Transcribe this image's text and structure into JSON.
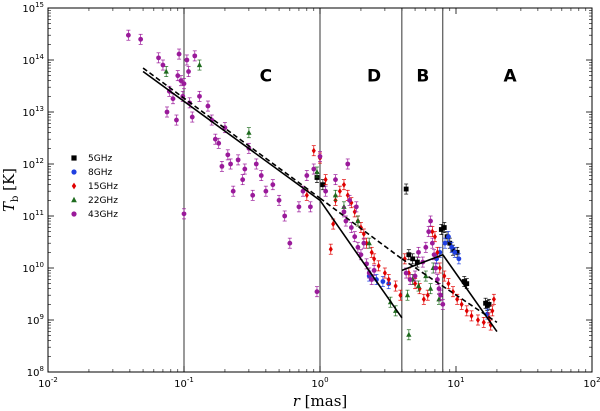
{
  "chart_data": {
    "type": "scatter",
    "title": "",
    "xlabel": "r [mas]",
    "ylabel": "T_b [K]",
    "xscale": "log",
    "yscale": "log",
    "xlim": [
      0.01,
      100
    ],
    "ylim": [
      100000000.0,
      1000000000000000.0
    ],
    "x_ticks": [
      {
        "value": 0.01,
        "base": "10",
        "exp": "-2"
      },
      {
        "value": 0.1,
        "base": "10",
        "exp": "-1"
      },
      {
        "value": 1,
        "base": "10",
        "exp": "0"
      },
      {
        "value": 10,
        "base": "10",
        "exp": "1"
      },
      {
        "value": 100,
        "base": "10",
        "exp": "2"
      }
    ],
    "y_ticks": [
      {
        "value": 100000000.0,
        "base": "10",
        "exp": "8"
      },
      {
        "value": 1000000000.0,
        "base": "10",
        "exp": "9"
      },
      {
        "value": 10000000000.0,
        "base": "10",
        "exp": "10"
      },
      {
        "value": 100000000000.0,
        "base": "10",
        "exp": "11"
      },
      {
        "value": 1000000000000.0,
        "base": "10",
        "exp": "12"
      },
      {
        "value": 10000000000000.0,
        "base": "10",
        "exp": "13"
      },
      {
        "value": 100000000000000.0,
        "base": "10",
        "exp": "14"
      },
      {
        "value": 1000000000000000.0,
        "base": "10",
        "exp": "15"
      }
    ],
    "grid": false,
    "legend_position": "center-left",
    "region_boundaries": [
      0.1,
      1.0,
      4.0,
      8.0
    ],
    "region_labels": [
      {
        "text": "C",
        "x": 0.4,
        "y": 50000000000000.0
      },
      {
        "text": "D",
        "x": 2.5,
        "y": 50000000000000.0
      },
      {
        "text": "B",
        "x": 5.7,
        "y": 50000000000000.0
      },
      {
        "text": "A",
        "x": 25,
        "y": 50000000000000.0
      }
    ],
    "fit_lines": [
      {
        "style": "solid",
        "points": [
          [
            0.05,
            60000000000000.0
          ],
          [
            1.0,
            200000000000.0
          ]
        ]
      },
      {
        "style": "solid",
        "points": [
          [
            1.0,
            200000000000.0
          ],
          [
            4.0,
            1100000000.0
          ]
        ]
      },
      {
        "style": "solid",
        "points": [
          [
            4.0,
            9000000000.0
          ],
          [
            8.0,
            18000000000.0
          ]
        ]
      },
      {
        "style": "solid",
        "points": [
          [
            8.0,
            18000000000.0
          ],
          [
            20,
            600000000.0
          ]
        ]
      },
      {
        "style": "dashed",
        "points": [
          [
            0.05,
            70000000000000.0
          ],
          [
            1.0,
            220000000000.0
          ]
        ]
      },
      {
        "style": "dashed",
        "points": [
          [
            1.0,
            220000000000.0
          ],
          [
            4.0,
            15000000000.0
          ]
        ]
      },
      {
        "style": "dashed",
        "points": [
          [
            4.0,
            15000000000.0
          ],
          [
            20,
            900000000.0
          ]
        ]
      }
    ],
    "series": [
      {
        "name": "5GHz",
        "color": "#000000",
        "marker": "square",
        "points": [
          [
            0.95,
            550000000000.0
          ],
          [
            1.05,
            400000000000.0
          ],
          [
            4.3,
            330000000000.0
          ],
          [
            4.5,
            18000000000.0
          ],
          [
            4.8,
            15000000000.0
          ],
          [
            5.2,
            13000000000.0
          ],
          [
            7.8,
            55000000000.0
          ],
          [
            8.2,
            60000000000.0
          ],
          [
            8.6,
            40000000000.0
          ],
          [
            9.0,
            30000000000.0
          ],
          [
            9.5,
            22000000000.0
          ],
          [
            10.2,
            20000000000.0
          ],
          [
            11.5,
            5500000000.0
          ],
          [
            12.0,
            5000000000.0
          ],
          [
            16.5,
            2100000000.0
          ],
          [
            17.0,
            1900000000.0
          ],
          [
            17.5,
            2000000000.0
          ]
        ]
      },
      {
        "name": "8GHz",
        "color": "#1f3fe0",
        "marker": "circle",
        "points": [
          [
            2.3,
            7000000000.0
          ],
          [
            2.6,
            6000000000.0
          ],
          [
            2.9,
            5500000000.0
          ],
          [
            3.2,
            5000000000.0
          ],
          [
            7.2,
            15000000000.0
          ],
          [
            7.6,
            20000000000.0
          ],
          [
            8.3,
            30000000000.0
          ],
          [
            8.8,
            40000000000.0
          ],
          [
            9.3,
            25000000000.0
          ],
          [
            9.8,
            20000000000.0
          ],
          [
            10.5,
            15000000000.0
          ],
          [
            17.0,
            1300000000.0
          ]
        ]
      },
      {
        "name": "15GHz",
        "color": "#e00000",
        "marker": "diamond",
        "points": [
          [
            0.8,
            250000000000.0
          ],
          [
            0.9,
            1800000000000.0
          ],
          [
            1.0,
            1300000000000.0
          ],
          [
            1.1,
            500000000000.0
          ],
          [
            1.2,
            23000000000.0
          ],
          [
            1.25,
            70000000000.0
          ],
          [
            1.3,
            200000000000.0
          ],
          [
            1.4,
            300000000000.0
          ],
          [
            1.5,
            400000000000.0
          ],
          [
            1.6,
            250000000000.0
          ],
          [
            1.7,
            180000000000.0
          ],
          [
            1.8,
            120000000000.0
          ],
          [
            1.9,
            80000000000.0
          ],
          [
            2.0,
            60000000000.0
          ],
          [
            2.1,
            45000000000.0
          ],
          [
            2.2,
            30000000000.0
          ],
          [
            2.4,
            20000000000.0
          ],
          [
            2.5,
            15000000000.0
          ],
          [
            2.7,
            11000000000.0
          ],
          [
            3.0,
            8000000000.0
          ],
          [
            3.2,
            6000000000.0
          ],
          [
            3.6,
            4500000000.0
          ],
          [
            3.9,
            3000000000.0
          ],
          [
            4.2,
            15000000000.0
          ],
          [
            4.5,
            8000000000.0
          ],
          [
            5.0,
            5000000000.0
          ],
          [
            5.4,
            4000000000.0
          ],
          [
            5.8,
            2500000000.0
          ],
          [
            6.2,
            3000000000.0
          ],
          [
            6.7,
            50000000000.0
          ],
          [
            7.0,
            40000000000.0
          ],
          [
            7.3,
            20000000000.0
          ],
          [
            7.6,
            10000000000.0
          ],
          [
            8.2,
            7000000000.0
          ],
          [
            8.8,
            5000000000.0
          ],
          [
            9.5,
            3500000000.0
          ],
          [
            10.2,
            2500000000.0
          ],
          [
            11.0,
            2000000000.0
          ],
          [
            12.0,
            1500000000.0
          ],
          [
            13.0,
            1200000000.0
          ],
          [
            14.5,
            1000000000.0
          ],
          [
            16.0,
            900000000.0
          ],
          [
            17.5,
            1100000000.0
          ],
          [
            18.0,
            800000000.0
          ],
          [
            19.0,
            2500000000.0
          ],
          [
            18.5,
            1500000000.0
          ]
        ]
      },
      {
        "name": "22GHz",
        "color": "#1e6b1e",
        "marker": "triangle",
        "points": [
          [
            0.074,
            60000000000000.0
          ],
          [
            0.13,
            80000000000000.0
          ],
          [
            0.3,
            4000000000000.0
          ],
          [
            0.95,
            700000000000.0
          ],
          [
            1.3,
            250000000000.0
          ],
          [
            1.5,
            150000000000.0
          ],
          [
            1.9,
            80000000000.0
          ],
          [
            2.3,
            30000000000.0
          ],
          [
            3.3,
            2200000000.0
          ],
          [
            3.6,
            1500000000.0
          ],
          [
            4.4,
            3000000000.0
          ],
          [
            4.8,
            6000000000.0
          ],
          [
            5.3,
            4500000000.0
          ],
          [
            4.5,
            520000000.0
          ],
          [
            6.0,
            7000000000.0
          ],
          [
            6.5,
            4000000000.0
          ],
          [
            7.5,
            2500000000.0
          ],
          [
            6.8,
            10000000000.0
          ]
        ]
      },
      {
        "name": "43GHz",
        "color": "#9a1a9a",
        "marker": "circle",
        "points": [
          [
            0.039,
            300000000000000.0
          ],
          [
            0.048,
            250000000000000.0
          ],
          [
            0.065,
            110000000000000.0
          ],
          [
            0.07,
            80000000000000.0
          ],
          [
            0.075,
            10000000000000.0
          ],
          [
            0.078,
            25000000000000.0
          ],
          [
            0.083,
            18000000000000.0
          ],
          [
            0.088,
            7000000000000.0
          ],
          [
            0.09,
            50000000000000.0
          ],
          [
            0.092,
            130000000000000.0
          ],
          [
            0.095,
            40000000000000.0
          ],
          [
            0.098,
            20000000000000.0
          ],
          [
            0.1,
            35000000000000.0
          ],
          [
            0.1,
            110000000000.0
          ],
          [
            0.105,
            100000000000000.0
          ],
          [
            0.108,
            60000000000000.0
          ],
          [
            0.11,
            15000000000000.0
          ],
          [
            0.115,
            8000000000000.0
          ],
          [
            0.12,
            120000000000000.0
          ],
          [
            0.13,
            20000000000000.0
          ],
          [
            0.15,
            13000000000000.0
          ],
          [
            0.16,
            7000000000000.0
          ],
          [
            0.17,
            3000000000000.0
          ],
          [
            0.18,
            2500000000000.0
          ],
          [
            0.19,
            900000000000.0
          ],
          [
            0.2,
            5000000000000.0
          ],
          [
            0.21,
            1500000000000.0
          ],
          [
            0.22,
            1000000000000.0
          ],
          [
            0.23,
            300000000000.0
          ],
          [
            0.25,
            1200000000000.0
          ],
          [
            0.27,
            500000000000.0
          ],
          [
            0.28,
            800000000000.0
          ],
          [
            0.3,
            2000000000000.0
          ],
          [
            0.32,
            250000000000.0
          ],
          [
            0.34,
            1000000000000.0
          ],
          [
            0.37,
            600000000000.0
          ],
          [
            0.4,
            300000000000.0
          ],
          [
            0.45,
            400000000000.0
          ],
          [
            0.5,
            200000000000.0
          ],
          [
            0.55,
            100000000000.0
          ],
          [
            0.6,
            30000000000.0
          ],
          [
            0.7,
            150000000000.0
          ],
          [
            0.75,
            300000000000.0
          ],
          [
            0.8,
            600000000000.0
          ],
          [
            0.85,
            150000000000.0
          ],
          [
            0.9,
            800000000000.0
          ],
          [
            0.95,
            3500000000.0
          ],
          [
            1.0,
            1400000000000.0
          ],
          [
            1.1,
            300000000000.0
          ],
          [
            1.3,
            500000000000.0
          ],
          [
            1.5,
            120000000000.0
          ],
          [
            1.55,
            80000000000.0
          ],
          [
            1.6,
            1000000000000.0
          ],
          [
            1.65,
            200000000000.0
          ],
          [
            1.7,
            60000000000.0
          ],
          [
            1.8,
            40000000000.0
          ],
          [
            1.85,
            150000000000.0
          ],
          [
            1.9,
            25000000000.0
          ],
          [
            2.0,
            18000000000.0
          ],
          [
            2.1,
            30000000000.0
          ],
          [
            2.2,
            12000000000.0
          ],
          [
            2.3,
            8000000000.0
          ],
          [
            2.4,
            6000000000.0
          ],
          [
            2.5,
            9000000000.0
          ],
          [
            4.3,
            8000000000.0
          ],
          [
            4.6,
            6000000000.0
          ],
          [
            5.0,
            7000000000.0
          ],
          [
            5.3,
            20000000000.0
          ],
          [
            5.7,
            13000000000.0
          ],
          [
            6.0,
            25000000000.0
          ],
          [
            6.3,
            50000000000.0
          ],
          [
            6.5,
            80000000000.0
          ],
          [
            6.7,
            30000000000.0
          ],
          [
            6.9,
            18000000000.0
          ],
          [
            7.1,
            10000000000.0
          ],
          [
            7.3,
            6000000000.0
          ],
          [
            7.5,
            4000000000.0
          ],
          [
            7.7,
            3000000000.0
          ],
          [
            8.0,
            2000000000.0
          ]
        ]
      }
    ]
  }
}
